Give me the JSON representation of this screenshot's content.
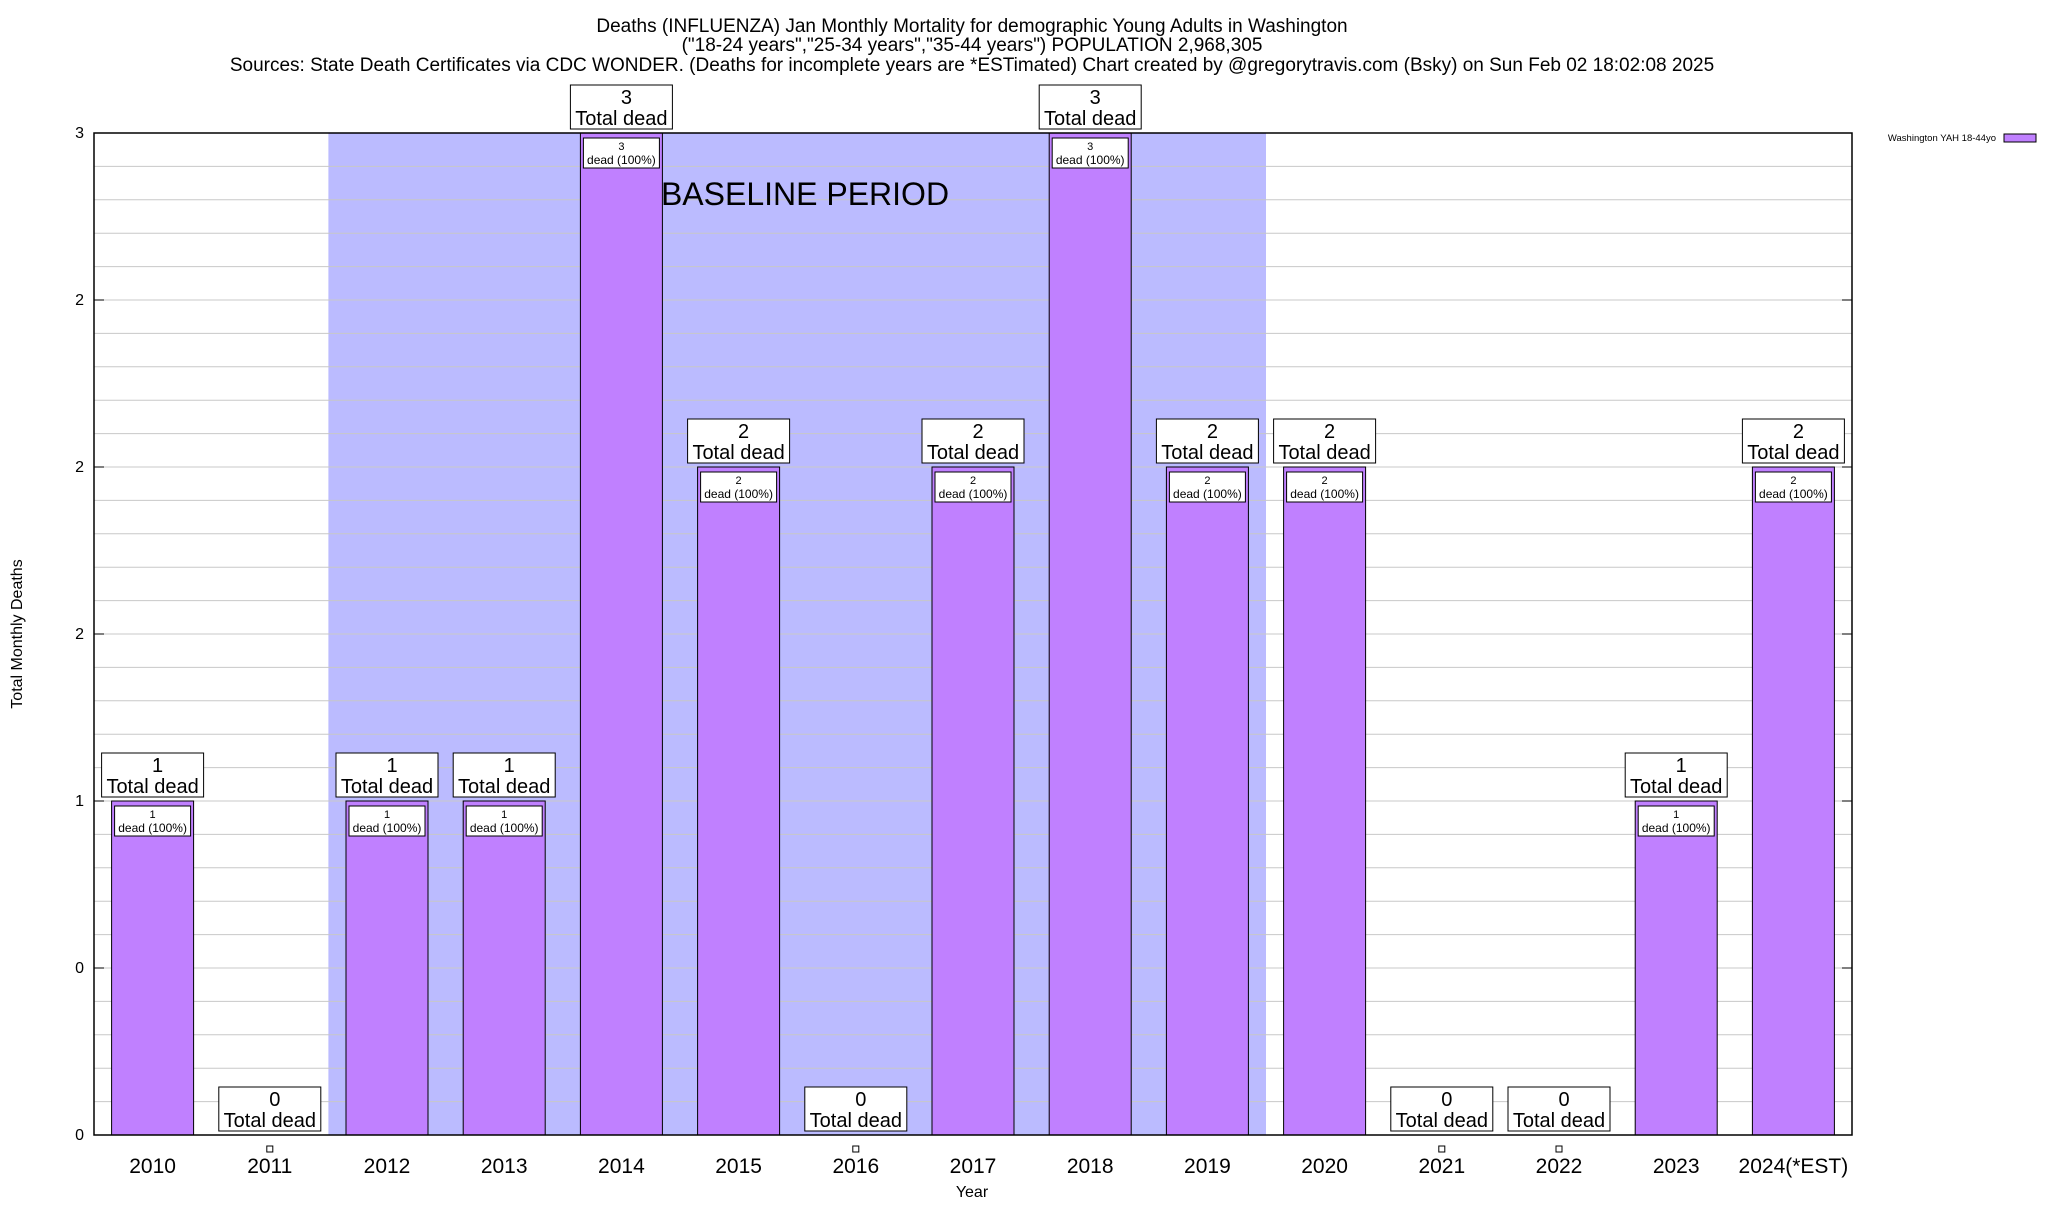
{
  "chart_data": {
    "type": "bar",
    "title_lines": [
      "Deaths (INFLUENZA) Jan Monthly Mortality for demographic Young Adults in Washington",
      "(\"18-24 years\",\"25-34 years\",\"35-44 years\") POPULATION 2,968,305",
      "Sources: State Death Certificates via CDC WONDER. (Deaths for incomplete years are *ESTimated)             Chart created by @gregorytravis.com (Bsky) on Sun Feb 02 18:02:08 2025"
    ],
    "xlabel": "Year",
    "ylabel": "Total Monthly Deaths",
    "categories": [
      "2010",
      "2011",
      "2012",
      "2013",
      "2014",
      "2015",
      "2016",
      "2017",
      "2018",
      "2019",
      "2020",
      "2021",
      "2022",
      "2023",
      "2024(*EST)"
    ],
    "series": [
      {
        "name": "Washington YAH 18-44yo",
        "values": [
          1,
          0,
          1,
          1,
          3,
          2,
          0,
          2,
          3,
          2,
          2,
          0,
          0,
          1,
          2
        ]
      }
    ],
    "ylim": [
      0,
      3
    ],
    "y_ticks": [
      {
        "value": 0,
        "label": "0"
      },
      {
        "value": 0.5,
        "label": "0"
      },
      {
        "value": 1,
        "label": "1"
      },
      {
        "value": 1.5,
        "label": "2"
      },
      {
        "value": 2,
        "label": "2"
      },
      {
        "value": 2.5,
        "label": "2"
      },
      {
        "value": 3,
        "label": "3"
      }
    ],
    "total_label_text": "Total dead",
    "bar_label_suffix": "dead (100%)",
    "baseline": {
      "label": "BASELINE PERIOD",
      "start": "2012",
      "end": "2019"
    },
    "legend_position": "top-right",
    "grid": true,
    "colors": {
      "bar": "#c080ff",
      "baseline": "#bbbbff",
      "grid": "#c8c8c8",
      "axis": "#000000"
    }
  }
}
